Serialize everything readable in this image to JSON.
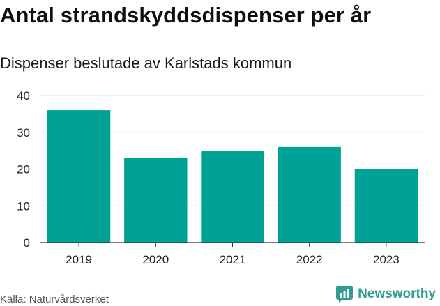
{
  "title": "Antal strandskyddsdispenser per år",
  "subtitle": "Dispenser beslutade av Karlstads kommun",
  "source": "Källa: Naturvårdsverket",
  "brand": {
    "name": "Newsworthy",
    "icon": "newsworthy-logo-icon",
    "color": "#2f9e8f"
  },
  "colors": {
    "bar": "#00a196",
    "grid": "#dddddd",
    "axis": "#333333",
    "text": "#222222"
  },
  "chart_data": {
    "type": "bar",
    "title": "Antal strandskyddsdispenser per år",
    "subtitle": "Dispenser beslutade av Karlstads kommun",
    "categories": [
      "2019",
      "2020",
      "2021",
      "2022",
      "2023"
    ],
    "values": [
      36,
      23,
      25,
      26,
      20
    ],
    "xlabel": "",
    "ylabel": "",
    "ylim": [
      0,
      40
    ],
    "yticks": [
      0,
      10,
      20,
      30,
      40
    ],
    "grid": true,
    "legend": "none"
  }
}
